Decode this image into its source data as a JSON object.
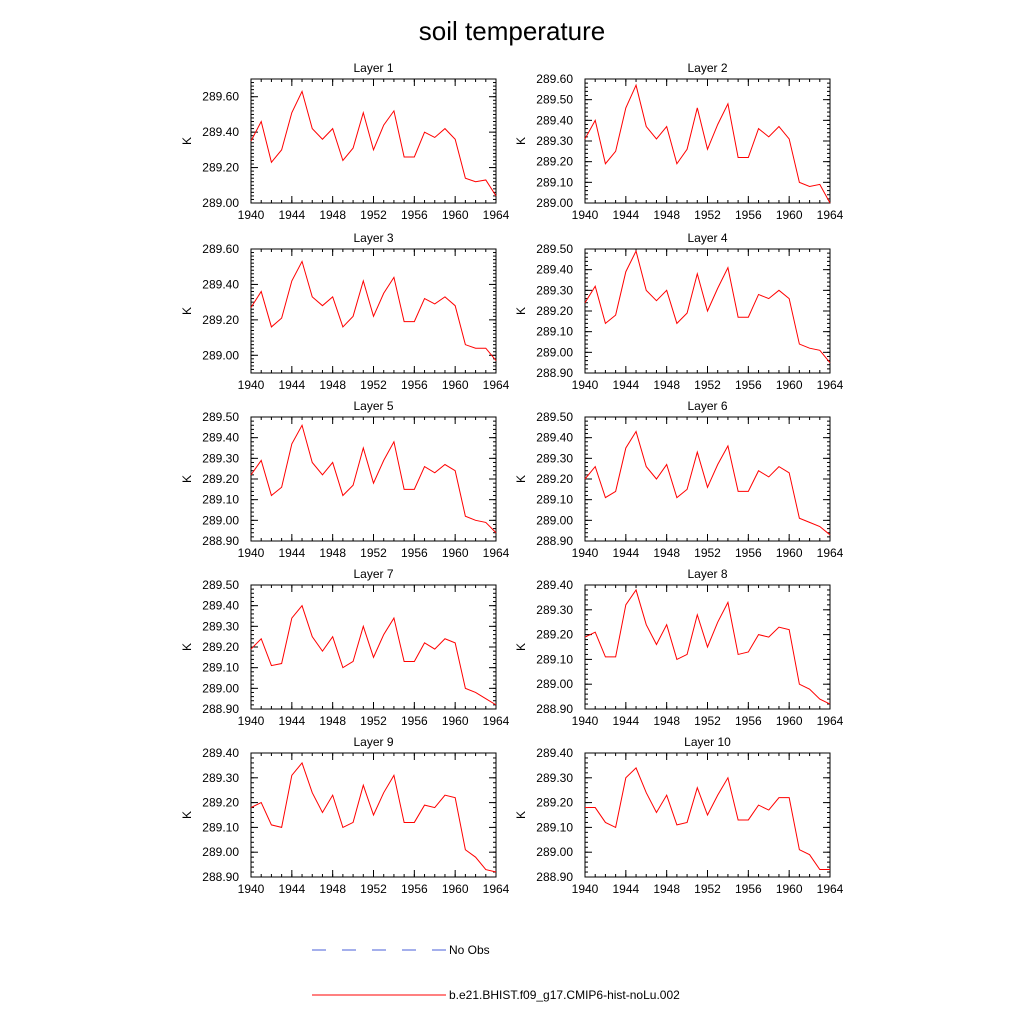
{
  "title": "soil temperature",
  "legend": [
    {
      "label": "No Obs",
      "color": "#4a5fd8",
      "style": "dashed"
    },
    {
      "label": "b.e21.BHIST.f09_g17.CMIP6-hist-noLu.002",
      "color": "#ff0000",
      "style": "solid"
    }
  ],
  "chart_data": [
    {
      "type": "line",
      "title": "Layer 1",
      "ylabel": "K",
      "xlim": [
        1940,
        1964
      ],
      "xticks": [
        "1940",
        "1944",
        "1948",
        "1952",
        "1956",
        "1960",
        "1964"
      ],
      "ylim": [
        289.0,
        289.7
      ],
      "yticks": [
        "289.00",
        "289.20",
        "289.40",
        "289.60"
      ],
      "series": [
        {
          "name": "b.e21.BHIST.f09_g17.CMIP6-hist-noLu.002",
          "x": [
            1940,
            1941,
            1942,
            1943,
            1944,
            1945,
            1946,
            1947,
            1948,
            1949,
            1950,
            1951,
            1952,
            1953,
            1954,
            1955,
            1956,
            1957,
            1958,
            1959,
            1960,
            1961,
            1962,
            1963,
            1964
          ],
          "values": [
            289.35,
            289.46,
            289.23,
            289.3,
            289.51,
            289.63,
            289.42,
            289.36,
            289.42,
            289.24,
            289.31,
            289.51,
            289.3,
            289.44,
            289.52,
            289.26,
            289.26,
            289.4,
            289.37,
            289.42,
            289.36,
            289.14,
            289.12,
            289.13,
            289.04
          ]
        }
      ]
    },
    {
      "type": "line",
      "title": "Layer 2",
      "ylabel": "K",
      "xlim": [
        1940,
        1964
      ],
      "xticks": [
        "1940",
        "1944",
        "1948",
        "1952",
        "1956",
        "1960",
        "1964"
      ],
      "ylim": [
        289.0,
        289.6
      ],
      "yticks": [
        "289.00",
        "289.10",
        "289.20",
        "289.30",
        "289.40",
        "289.50",
        "289.60"
      ],
      "series": [
        {
          "name": "b.e21.BHIST.f09_g17.CMIP6-hist-noLu.002",
          "x": [
            1940,
            1941,
            1942,
            1943,
            1944,
            1945,
            1946,
            1947,
            1948,
            1949,
            1950,
            1951,
            1952,
            1953,
            1954,
            1955,
            1956,
            1957,
            1958,
            1959,
            1960,
            1961,
            1962,
            1963,
            1964
          ],
          "values": [
            289.31,
            289.4,
            289.19,
            289.25,
            289.46,
            289.57,
            289.37,
            289.31,
            289.37,
            289.19,
            289.26,
            289.46,
            289.26,
            289.38,
            289.48,
            289.22,
            289.22,
            289.36,
            289.32,
            289.37,
            289.31,
            289.1,
            289.08,
            289.09,
            289.0
          ]
        }
      ]
    },
    {
      "type": "line",
      "title": "Layer 3",
      "ylabel": "K",
      "xlim": [
        1940,
        1964
      ],
      "xticks": [
        "1940",
        "1944",
        "1948",
        "1952",
        "1956",
        "1960",
        "1964"
      ],
      "ylim": [
        288.9,
        289.6
      ],
      "yticks": [
        "289.00",
        "289.20",
        "289.40",
        "289.60"
      ],
      "series": [
        {
          "name": "b.e21.BHIST.f09_g17.CMIP6-hist-noLu.002",
          "x": [
            1940,
            1941,
            1942,
            1943,
            1944,
            1945,
            1946,
            1947,
            1948,
            1949,
            1950,
            1951,
            1952,
            1953,
            1954,
            1955,
            1956,
            1957,
            1958,
            1959,
            1960,
            1961,
            1962,
            1963,
            1964
          ],
          "values": [
            289.27,
            289.36,
            289.16,
            289.21,
            289.42,
            289.53,
            289.33,
            289.28,
            289.33,
            289.16,
            289.22,
            289.42,
            289.22,
            289.35,
            289.44,
            289.19,
            289.19,
            289.32,
            289.29,
            289.33,
            289.28,
            289.06,
            289.04,
            289.04,
            288.97
          ]
        }
      ]
    },
    {
      "type": "line",
      "title": "Layer 4",
      "ylabel": "K",
      "xlim": [
        1940,
        1964
      ],
      "xticks": [
        "1940",
        "1944",
        "1948",
        "1952",
        "1956",
        "1960",
        "1964"
      ],
      "ylim": [
        288.9,
        289.5
      ],
      "yticks": [
        "288.90",
        "289.00",
        "289.10",
        "289.20",
        "289.30",
        "289.40",
        "289.50"
      ],
      "series": [
        {
          "name": "b.e21.BHIST.f09_g17.CMIP6-hist-noLu.002",
          "x": [
            1940,
            1941,
            1942,
            1943,
            1944,
            1945,
            1946,
            1947,
            1948,
            1949,
            1950,
            1951,
            1952,
            1953,
            1954,
            1955,
            1956,
            1957,
            1958,
            1959,
            1960,
            1961,
            1962,
            1963,
            1964
          ],
          "values": [
            289.24,
            289.32,
            289.14,
            289.18,
            289.39,
            289.49,
            289.3,
            289.25,
            289.3,
            289.14,
            289.19,
            289.38,
            289.2,
            289.31,
            289.41,
            289.17,
            289.17,
            289.28,
            289.26,
            289.3,
            289.26,
            289.04,
            289.02,
            289.01,
            288.95
          ]
        }
      ]
    },
    {
      "type": "line",
      "title": "Layer 5",
      "ylabel": "K",
      "xlim": [
        1940,
        1964
      ],
      "xticks": [
        "1940",
        "1944",
        "1948",
        "1952",
        "1956",
        "1960",
        "1964"
      ],
      "ylim": [
        288.9,
        289.5
      ],
      "yticks": [
        "288.90",
        "289.00",
        "289.10",
        "289.20",
        "289.30",
        "289.40",
        "289.50"
      ],
      "series": [
        {
          "name": "b.e21.BHIST.f09_g17.CMIP6-hist-noLu.002",
          "x": [
            1940,
            1941,
            1942,
            1943,
            1944,
            1945,
            1946,
            1947,
            1948,
            1949,
            1950,
            1951,
            1952,
            1953,
            1954,
            1955,
            1956,
            1957,
            1958,
            1959,
            1960,
            1961,
            1962,
            1963,
            1964
          ],
          "values": [
            289.22,
            289.29,
            289.12,
            289.16,
            289.37,
            289.46,
            289.28,
            289.22,
            289.28,
            289.12,
            289.17,
            289.35,
            289.18,
            289.29,
            289.38,
            289.15,
            289.15,
            289.26,
            289.23,
            289.27,
            289.24,
            289.02,
            289.0,
            288.99,
            288.94
          ]
        }
      ]
    },
    {
      "type": "line",
      "title": "Layer 6",
      "ylabel": "K",
      "xlim": [
        1940,
        1964
      ],
      "xticks": [
        "1940",
        "1944",
        "1948",
        "1952",
        "1956",
        "1960",
        "1964"
      ],
      "ylim": [
        288.9,
        289.5
      ],
      "yticks": [
        "288.90",
        "289.00",
        "289.10",
        "289.20",
        "289.30",
        "289.40",
        "289.50"
      ],
      "series": [
        {
          "name": "b.e21.BHIST.f09_g17.CMIP6-hist-noLu.002",
          "x": [
            1940,
            1941,
            1942,
            1943,
            1944,
            1945,
            1946,
            1947,
            1948,
            1949,
            1950,
            1951,
            1952,
            1953,
            1954,
            1955,
            1956,
            1957,
            1958,
            1959,
            1960,
            1961,
            1962,
            1963,
            1964
          ],
          "values": [
            289.2,
            289.26,
            289.11,
            289.14,
            289.35,
            289.43,
            289.26,
            289.2,
            289.27,
            289.11,
            289.15,
            289.33,
            289.16,
            289.27,
            289.36,
            289.14,
            289.14,
            289.24,
            289.21,
            289.26,
            289.23,
            289.01,
            288.99,
            288.97,
            288.93
          ]
        }
      ]
    },
    {
      "type": "line",
      "title": "Layer 7",
      "ylabel": "K",
      "xlim": [
        1940,
        1964
      ],
      "xticks": [
        "1940",
        "1944",
        "1948",
        "1952",
        "1956",
        "1960",
        "1964"
      ],
      "ylim": [
        288.9,
        289.5
      ],
      "yticks": [
        "288.90",
        "289.00",
        "289.10",
        "289.20",
        "289.30",
        "289.40",
        "289.50"
      ],
      "series": [
        {
          "name": "b.e21.BHIST.f09_g17.CMIP6-hist-noLu.002",
          "x": [
            1940,
            1941,
            1942,
            1943,
            1944,
            1945,
            1946,
            1947,
            1948,
            1949,
            1950,
            1951,
            1952,
            1953,
            1954,
            1955,
            1956,
            1957,
            1958,
            1959,
            1960,
            1961,
            1962,
            1963,
            1964
          ],
          "values": [
            289.19,
            289.24,
            289.11,
            289.12,
            289.34,
            289.4,
            289.25,
            289.18,
            289.25,
            289.1,
            289.13,
            289.3,
            289.15,
            289.26,
            289.34,
            289.13,
            289.13,
            289.22,
            289.19,
            289.24,
            289.22,
            289.0,
            288.98,
            288.95,
            288.92
          ]
        }
      ]
    },
    {
      "type": "line",
      "title": "Layer 8",
      "ylabel": "K",
      "xlim": [
        1940,
        1964
      ],
      "xticks": [
        "1940",
        "1944",
        "1948",
        "1952",
        "1956",
        "1960",
        "1964"
      ],
      "ylim": [
        288.9,
        289.4
      ],
      "yticks": [
        "288.90",
        "289.00",
        "289.10",
        "289.20",
        "289.30",
        "289.40"
      ],
      "series": [
        {
          "name": "b.e21.BHIST.f09_g17.CMIP6-hist-noLu.002",
          "x": [
            1940,
            1941,
            1942,
            1943,
            1944,
            1945,
            1946,
            1947,
            1948,
            1949,
            1950,
            1951,
            1952,
            1953,
            1954,
            1955,
            1956,
            1957,
            1958,
            1959,
            1960,
            1961,
            1962,
            1963,
            1964
          ],
          "values": [
            289.19,
            289.21,
            289.11,
            289.11,
            289.32,
            289.38,
            289.24,
            289.16,
            289.24,
            289.1,
            289.12,
            289.28,
            289.15,
            289.25,
            289.33,
            289.12,
            289.13,
            289.2,
            289.19,
            289.23,
            289.22,
            289.0,
            288.98,
            288.94,
            288.92
          ]
        }
      ]
    },
    {
      "type": "line",
      "title": "Layer 9",
      "ylabel": "K",
      "xlim": [
        1940,
        1964
      ],
      "xticks": [
        "1940",
        "1944",
        "1948",
        "1952",
        "1956",
        "1960",
        "1964"
      ],
      "ylim": [
        288.9,
        289.4
      ],
      "yticks": [
        "288.90",
        "289.00",
        "289.10",
        "289.20",
        "289.30",
        "289.40"
      ],
      "series": [
        {
          "name": "b.e21.BHIST.f09_g17.CMIP6-hist-noLu.002",
          "x": [
            1940,
            1941,
            1942,
            1943,
            1944,
            1945,
            1946,
            1947,
            1948,
            1949,
            1950,
            1951,
            1952,
            1953,
            1954,
            1955,
            1956,
            1957,
            1958,
            1959,
            1960,
            1961,
            1962,
            1963,
            1964
          ],
          "values": [
            289.18,
            289.2,
            289.11,
            289.1,
            289.31,
            289.36,
            289.24,
            289.16,
            289.23,
            289.1,
            289.12,
            289.27,
            289.15,
            289.24,
            289.31,
            289.12,
            289.12,
            289.19,
            289.18,
            289.23,
            289.22,
            289.01,
            288.98,
            288.93,
            288.92
          ]
        }
      ]
    },
    {
      "type": "line",
      "title": "Layer 10",
      "ylabel": "K",
      "xlim": [
        1940,
        1964
      ],
      "xticks": [
        "1940",
        "1944",
        "1948",
        "1952",
        "1956",
        "1960",
        "1964"
      ],
      "ylim": [
        288.9,
        289.4
      ],
      "yticks": [
        "288.90",
        "289.00",
        "289.10",
        "289.20",
        "289.30",
        "289.40"
      ],
      "series": [
        {
          "name": "b.e21.BHIST.f09_g17.CMIP6-hist-noLu.002",
          "x": [
            1940,
            1941,
            1942,
            1943,
            1944,
            1945,
            1946,
            1947,
            1948,
            1949,
            1950,
            1951,
            1952,
            1953,
            1954,
            1955,
            1956,
            1957,
            1958,
            1959,
            1960,
            1961,
            1962,
            1963,
            1964
          ],
          "values": [
            289.18,
            289.18,
            289.12,
            289.1,
            289.3,
            289.34,
            289.24,
            289.16,
            289.23,
            289.11,
            289.12,
            289.26,
            289.15,
            289.23,
            289.3,
            289.13,
            289.13,
            289.19,
            289.17,
            289.22,
            289.22,
            289.01,
            288.99,
            288.93,
            288.93
          ]
        }
      ]
    }
  ]
}
